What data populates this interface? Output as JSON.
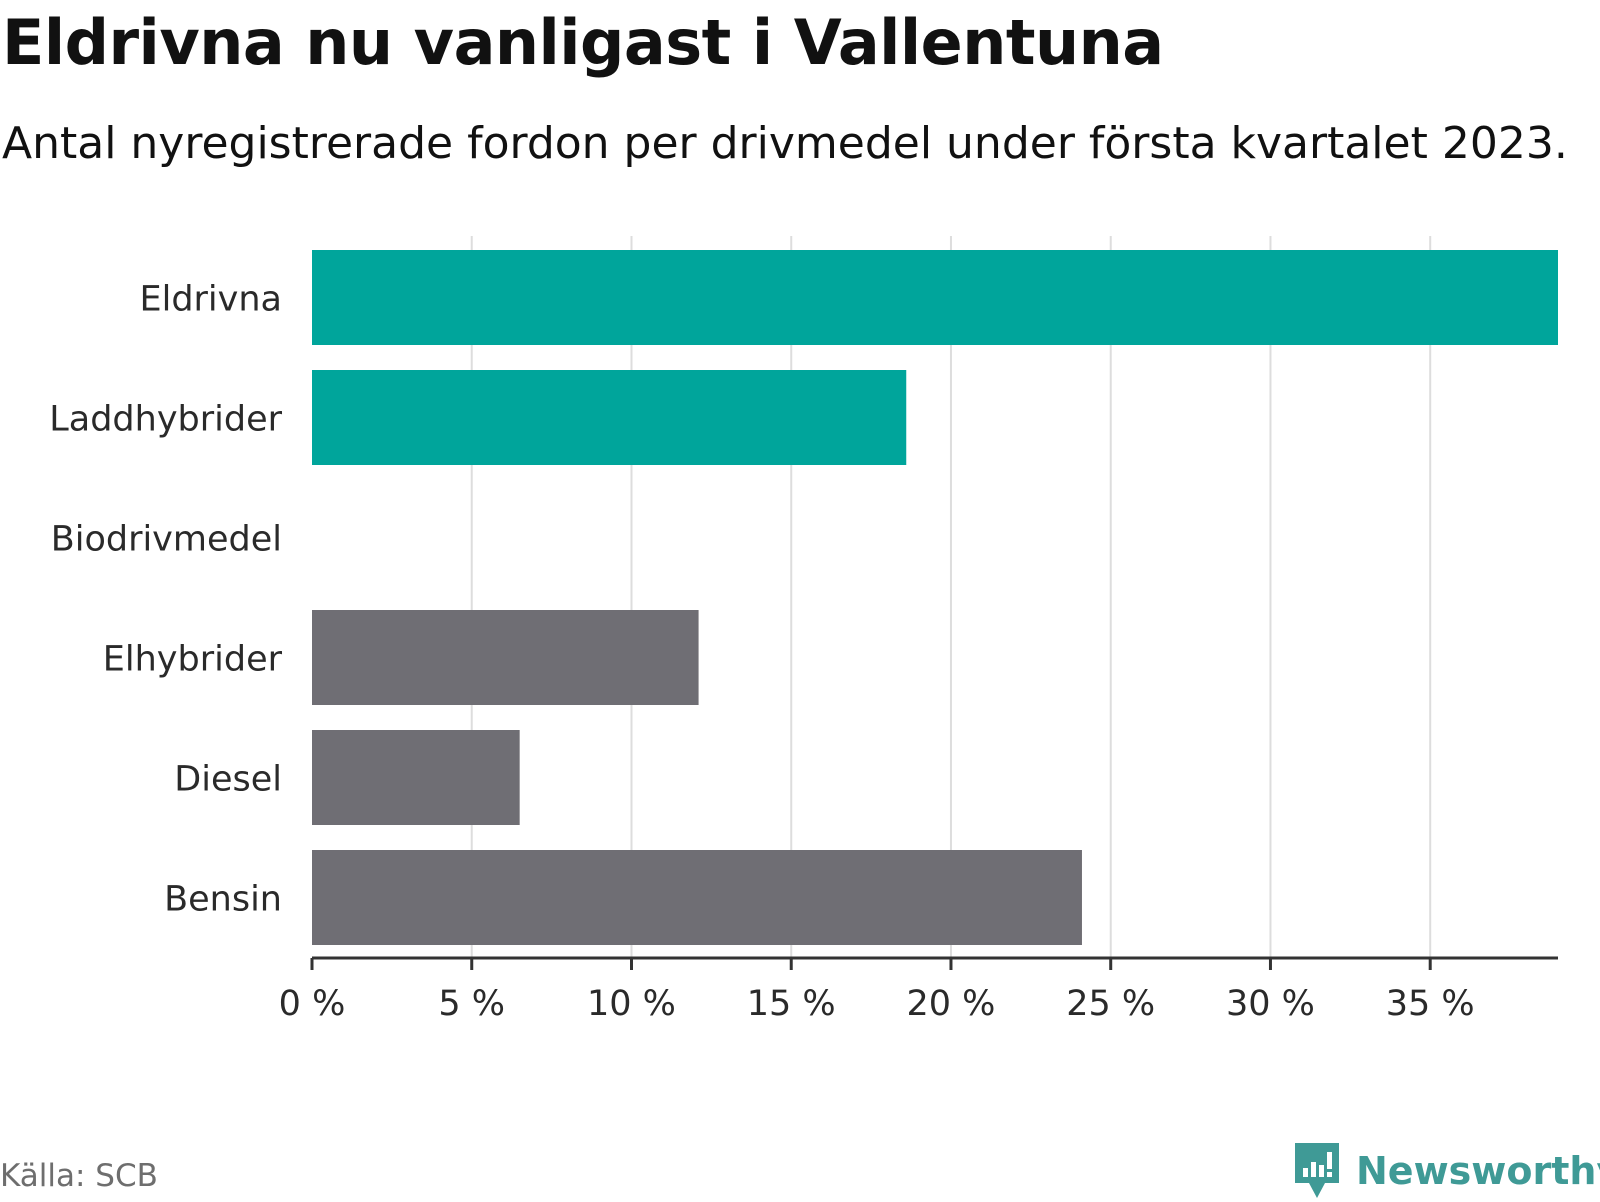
{
  "header": {
    "title": "Eldrivna nu vanligast i Vallentuna",
    "subtitle": "Antal nyregistrerade fordon per drivmedel under första kvartalet 2023."
  },
  "footer": {
    "source": "Källa: SCB",
    "brand": "Newsworthy"
  },
  "colors": {
    "highlight": "#00a59b",
    "neutral": "#6f6e74",
    "grid": "#dddddd",
    "axis": "#333333",
    "brand": "#3f9a96"
  },
  "chart_data": {
    "type": "bar",
    "orientation": "horizontal",
    "title": "Eldrivna nu vanligast i Vallentuna",
    "subtitle": "Antal nyregistrerade fordon per drivmedel under första kvartalet 2023.",
    "categories": [
      "Eldrivna",
      "Laddhybrider",
      "Biodrivmedel",
      "Elhybrider",
      "Diesel",
      "Bensin"
    ],
    "values": [
      39.0,
      18.6,
      0,
      12.1,
      6.5,
      24.1
    ],
    "bar_colors": [
      "#00a59b",
      "#00a59b",
      "#00a59b",
      "#6f6e74",
      "#6f6e74",
      "#6f6e74"
    ],
    "x_ticks": [
      0,
      5,
      10,
      15,
      20,
      25,
      30,
      35
    ],
    "x_tick_labels": [
      "0 %",
      "5 %",
      "10 %",
      "15 %",
      "20 %",
      "25 %",
      "30 %",
      "35 %"
    ],
    "xlim": [
      0,
      39
    ],
    "xlabel": "",
    "ylabel": "",
    "grid": true
  }
}
